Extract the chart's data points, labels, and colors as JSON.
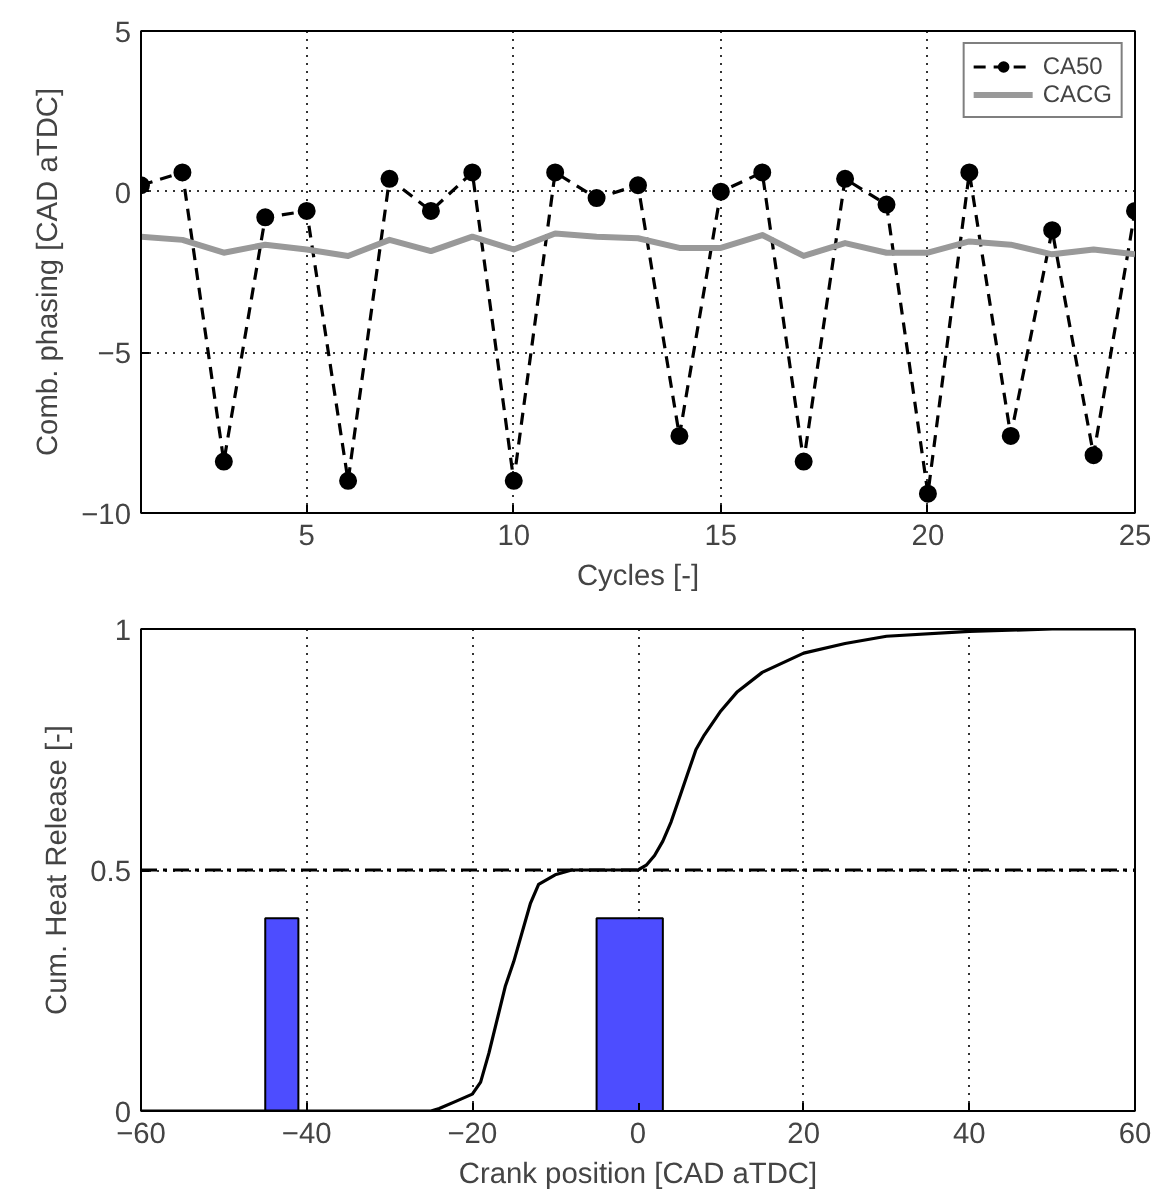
{
  "chart_data": [
    {
      "type": "line",
      "xlabel": "Cycles [-]",
      "ylabel": "Comb. phasing [CAD aTDC]",
      "xlim": [
        1,
        25
      ],
      "ylim": [
        -10,
        5
      ],
      "xticks": [
        5,
        10,
        15,
        20,
        25
      ],
      "yticks": [
        -10,
        -5,
        0,
        5
      ],
      "grid": true,
      "legend": "top right",
      "x": [
        1,
        2,
        3,
        4,
        5,
        6,
        7,
        8,
        9,
        10,
        11,
        12,
        13,
        14,
        15,
        16,
        17,
        18,
        19,
        20,
        21,
        22,
        23,
        24,
        25
      ],
      "series": [
        {
          "name": "CA50",
          "color": "#000000",
          "marker": "circle",
          "line_style": "dashed",
          "values": [
            0.2,
            0.6,
            -8.4,
            -0.8,
            -0.6,
            -9.0,
            0.4,
            -0.6,
            0.6,
            -9.0,
            0.6,
            -0.2,
            0.2,
            -7.6,
            0.0,
            0.6,
            -8.4,
            0.4,
            -0.4,
            -9.4,
            0.6,
            -7.6,
            -1.2,
            -8.2,
            -0.6
          ]
        },
        {
          "name": "CACG",
          "color": "#999999",
          "line_style": "solid",
          "values": [
            -1.4,
            -1.5,
            -1.9,
            -1.65,
            -1.8,
            -2.0,
            -1.5,
            -1.85,
            -1.4,
            -1.8,
            -1.3,
            -1.4,
            -1.45,
            -1.75,
            -1.75,
            -1.35,
            -2.0,
            -1.6,
            -1.9,
            -1.9,
            -1.55,
            -1.65,
            -1.95,
            -1.8,
            -1.95
          ]
        }
      ]
    },
    {
      "type": "line",
      "xlabel": "Crank position [CAD aTDC]",
      "ylabel": "Cum. Heat Release [-]",
      "xlim": [
        -60,
        60
      ],
      "ylim": [
        0,
        1
      ],
      "xticks": [
        -60,
        -40,
        -20,
        0,
        20,
        40,
        60
      ],
      "yticks": [
        0,
        0.5,
        1
      ],
      "grid": true,
      "ref_lines": [
        {
          "axis": "y",
          "value": 0.5,
          "label": null,
          "color": "#000000",
          "line_style": "dashdot"
        }
      ],
      "series": [
        {
          "type": "area",
          "color": "#4d4dff",
          "x": [
            -45,
            -45,
            -41,
            -41
          ],
          "values": [
            0,
            0.4,
            0.4,
            0
          ]
        },
        {
          "type": "area",
          "color": "#4d4dff",
          "x": [
            -5,
            -5,
            3,
            3
          ],
          "values": [
            0,
            0.4,
            0.4,
            0
          ]
        },
        {
          "type": "line",
          "color": "#000000",
          "line_style": "solid",
          "x": [
            -60,
            -25,
            -24,
            -22,
            -20,
            -19,
            -18,
            -17,
            -16,
            -15,
            -14,
            -13,
            -12,
            -10,
            -8,
            -5,
            0,
            1,
            2,
            3,
            4,
            5,
            6,
            7,
            8,
            10,
            12,
            15,
            20,
            25,
            30,
            40,
            50,
            60
          ],
          "values": [
            0,
            0,
            0.005,
            0.02,
            0.035,
            0.06,
            0.12,
            0.19,
            0.26,
            0.31,
            0.37,
            0.43,
            0.47,
            0.49,
            0.5,
            0.5,
            0.5,
            0.51,
            0.53,
            0.56,
            0.6,
            0.65,
            0.7,
            0.75,
            0.78,
            0.83,
            0.87,
            0.91,
            0.95,
            0.97,
            0.985,
            0.995,
            1.0,
            1.0
          ]
        }
      ]
    }
  ]
}
